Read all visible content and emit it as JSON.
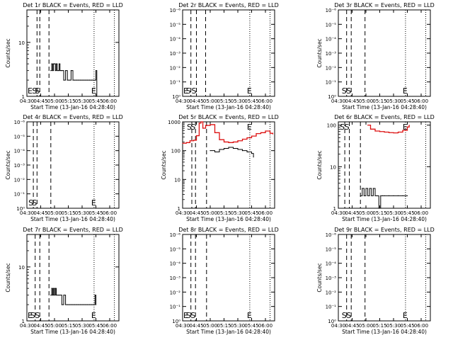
{
  "chart_data": [
    {
      "id": "1r",
      "type": "line",
      "title": "Det 1r BLACK = Events, RED = LLD",
      "xlabel": "Start Time (13-Jan-16 04:28:40)",
      "ylabel": "Counts/sec",
      "xticks": [
        "04:30",
        "04:45",
        "05:00",
        "05:15",
        "05:30",
        "05:45",
        "06:00"
      ],
      "yticks": [
        "1",
        "10"
      ],
      "yscale": "log",
      "ylim": [
        1,
        40
      ],
      "markers": [
        {
          "t": "04:30",
          "label": "E"
        },
        {
          "t": "04:41",
          "label": "S"
        },
        {
          "t": "04:44",
          "label": "S"
        },
        {
          "t": "04:54",
          "label": ""
        },
        {
          "t": "05:43",
          "label": "E"
        },
        {
          "t": "06:05",
          "label": ""
        }
      ],
      "events": {
        "x": [
          "04:56",
          "04:57",
          "04:58",
          "04:59",
          "05:00",
          "05:01",
          "05:02",
          "05:03",
          "05:04",
          "05:05",
          "05:06",
          "05:07",
          "05:08",
          "05:10",
          "05:12",
          "05:14",
          "05:16",
          "05:18",
          "05:20",
          "05:22",
          "05:24",
          "05:26",
          "05:28",
          "05:30",
          "05:32",
          "05:34",
          "05:36",
          "05:38",
          "05:40",
          "05:42",
          "05:44",
          "05:45",
          "05:46"
        ],
        "y": [
          3,
          4,
          3,
          4,
          4,
          3,
          4,
          3,
          3,
          4,
          3,
          3,
          3,
          2,
          3,
          2,
          2,
          3,
          2,
          2,
          2,
          2,
          2,
          2,
          2,
          2,
          2,
          2,
          2,
          2,
          2,
          3,
          1
        ]
      },
      "lld": null
    },
    {
      "id": "2r",
      "type": "line",
      "title": "Det 2r BLACK = Events, RED = LLD",
      "xlabel": "Start Time (13-Jan-16 04:28:40)",
      "ylabel": "",
      "xticks": [
        "04:30",
        "04:45",
        "05:00",
        "05:15",
        "05:30",
        "05:45",
        "06:00"
      ],
      "yticks": [
        "10⁰",
        "10⁻¹",
        "10⁻²",
        "10⁻³",
        "10⁻⁴",
        "10⁻⁵",
        "10⁻⁶"
      ],
      "yscale": "log",
      "markers": [
        {
          "t": "04:30",
          "label": "E"
        },
        {
          "t": "04:39",
          "label": "S"
        },
        {
          "t": "04:45",
          "label": "S"
        },
        {
          "t": "04:55",
          "label": ""
        },
        {
          "t": "05:43",
          "label": "E"
        },
        {
          "t": "06:05",
          "label": ""
        }
      ],
      "events": null,
      "lld": null
    },
    {
      "id": "3r",
      "type": "line",
      "title": "Det 3r BLACK = Events, RED = LLD",
      "xlabel": "Start Time (13-Jan-16 04:28:40)",
      "ylabel": "Counts/sec",
      "xticks": [
        "04:30",
        "04:45",
        "05:00",
        "05:15",
        "05:30",
        "05:45",
        "06:00"
      ],
      "yticks": [
        "10⁰",
        "10⁻¹",
        "10⁻²",
        "10⁻³",
        "10⁻⁴",
        "10⁻⁵",
        "10⁻⁶"
      ],
      "yscale": "log",
      "markers": [
        {
          "t": "04:39",
          "label": "S"
        },
        {
          "t": "04:44",
          "label": "S"
        },
        {
          "t": "04:59",
          "label": ""
        },
        {
          "t": "05:43",
          "label": "E"
        },
        {
          "t": "06:05",
          "label": ""
        }
      ],
      "events": null,
      "lld": null
    },
    {
      "id": "4r",
      "type": "line",
      "title": "Det 4r BLACK = Events, RED = LLD",
      "xlabel": "Start Time (13-Jan-16 04:28:40)",
      "ylabel": "Counts/sec",
      "xticks": [
        "04:30",
        "04:45",
        "05:00",
        "05:15",
        "05:30",
        "05:45",
        "06:00"
      ],
      "yticks": [
        "10⁰",
        "10⁻¹",
        "10⁻²",
        "10⁻³",
        "10⁻⁴",
        "10⁻⁵",
        "10⁻⁶"
      ],
      "yscale": "log",
      "markers": [
        {
          "t": "04:37",
          "label": "S"
        },
        {
          "t": "04:41",
          "label": "S"
        },
        {
          "t": "04:56",
          "label": ""
        },
        {
          "t": "05:43",
          "label": "E"
        },
        {
          "t": "06:05",
          "label": ""
        }
      ],
      "events": null,
      "lld": null
    },
    {
      "id": "5r",
      "type": "line",
      "title": "Det 5r BLACK = Events, RED = LLD",
      "xlabel": "Start Time (13-Jan-16 04:28:40)",
      "ylabel": "Counts/sec",
      "xticks": [
        "04:30",
        "04:45",
        "05:00",
        "05:15",
        "05:30",
        "05:45",
        "06:00"
      ],
      "yticks": [
        "1",
        "10",
        "100",
        "1000"
      ],
      "yscale": "log",
      "ylim": [
        1,
        1000
      ],
      "markers": [
        {
          "t": "04:40",
          "label": "S"
        },
        {
          "t": "04:44",
          "label": "S"
        },
        {
          "t": "04:56",
          "label": ""
        },
        {
          "t": "05:43",
          "label": "E"
        },
        {
          "t": "06:05",
          "label": ""
        }
      ],
      "events": {
        "x": [
          "05:00",
          "05:05",
          "05:10",
          "05:15",
          "05:20",
          "05:25",
          "05:30",
          "05:35",
          "05:40",
          "05:45",
          "05:47"
        ],
        "y": [
          100,
          90,
          110,
          120,
          130,
          120,
          110,
          100,
          90,
          80,
          60
        ]
      },
      "lld": {
        "x": [
          "04:30",
          "04:34",
          "04:38",
          "04:42",
          "04:45",
          "04:48",
          "04:50",
          "04:52",
          "04:55",
          "05:00",
          "05:05",
          "05:10",
          "05:15",
          "05:20",
          "05:25",
          "05:30",
          "05:35",
          "05:40",
          "05:45",
          "05:50",
          "05:55",
          "06:00",
          "06:05",
          "06:08"
        ],
        "y": [
          180,
          190,
          220,
          230,
          330,
          900,
          1000,
          600,
          750,
          800,
          420,
          240,
          200,
          190,
          200,
          220,
          250,
          280,
          320,
          390,
          420,
          480,
          400,
          380
        ]
      }
    },
    {
      "id": "6r",
      "type": "line",
      "title": "Det 6r BLACK = Events, RED = LLD",
      "xlabel": "Start Time (13-Jan-16 04:28:40)",
      "ylabel": "Counts/sec",
      "xticks": [
        "04:30",
        "04:45",
        "05:00",
        "05:15",
        "05:30",
        "05:45",
        "06:00"
      ],
      "yticks": [
        "1",
        "10",
        "100"
      ],
      "yscale": "log",
      "ylim": [
        1,
        120
      ],
      "markers": [
        {
          "t": "04:37",
          "label": "S"
        },
        {
          "t": "04:42",
          "label": "S"
        },
        {
          "t": "04:54",
          "label": ""
        },
        {
          "t": "05:43",
          "label": "E"
        },
        {
          "t": "06:05",
          "label": ""
        }
      ],
      "events": {
        "x": [
          "04:54",
          "04:56",
          "04:58",
          "05:00",
          "05:02",
          "05:04",
          "05:06",
          "05:08",
          "05:10",
          "05:12",
          "05:14",
          "05:16",
          "05:18",
          "05:20",
          "05:25",
          "05:30",
          "05:35",
          "05:40",
          "05:45"
        ],
        "y": [
          2,
          3,
          2,
          3,
          2,
          3,
          2,
          3,
          2,
          2,
          1,
          2,
          2,
          2,
          2,
          2,
          2,
          2,
          2
        ]
      },
      "lld": {
        "x": [
          "05:02",
          "05:05",
          "05:10",
          "05:15",
          "05:20",
          "05:25",
          "05:30",
          "05:35",
          "05:40",
          "05:45",
          "05:47"
        ],
        "y": [
          100,
          80,
          72,
          70,
          68,
          66,
          65,
          68,
          75,
          90,
          100
        ]
      }
    },
    {
      "id": "7r",
      "type": "line",
      "title": "Det 7r BLACK = Events, RED = LLD",
      "xlabel": "Start Time (13-Jan-16 04:28:40)",
      "ylabel": "Counts/sec",
      "xticks": [
        "04:30",
        "04:45",
        "05:00",
        "05:15",
        "05:30",
        "05:45",
        "06:00"
      ],
      "yticks": [
        "1",
        "10"
      ],
      "yscale": "log",
      "ylim": [
        1,
        40
      ],
      "markers": [
        {
          "t": "04:30",
          "label": "E"
        },
        {
          "t": "04:39",
          "label": "S"
        },
        {
          "t": "04:44",
          "label": "S"
        },
        {
          "t": "04:54",
          "label": ""
        },
        {
          "t": "05:43",
          "label": "E"
        },
        {
          "t": "06:05",
          "label": ""
        }
      ],
      "events": {
        "x": [
          "04:56",
          "04:57",
          "04:58",
          "04:59",
          "05:00",
          "05:01",
          "05:02",
          "05:04",
          "05:06",
          "05:08",
          "05:10",
          "05:12",
          "05:14",
          "05:16",
          "05:18",
          "05:20",
          "05:22",
          "05:24",
          "05:26",
          "05:28",
          "05:30",
          "05:32",
          "05:34",
          "05:36",
          "05:38",
          "05:40",
          "05:42",
          "05:44",
          "05:45"
        ],
        "y": [
          3,
          4,
          3,
          4,
          3,
          4,
          3,
          3,
          3,
          2,
          3,
          2,
          2,
          2,
          2,
          2,
          2,
          2,
          2,
          2,
          2,
          2,
          2,
          2,
          2,
          2,
          2,
          3,
          2
        ]
      },
      "lld": null
    },
    {
      "id": "8r",
      "type": "line",
      "title": "Det 8r BLACK = Events, RED = LLD",
      "xlabel": "Start Time (13-Jan-16 04:28:40)",
      "ylabel": "",
      "xticks": [
        "04:30",
        "04:45",
        "05:00",
        "05:15",
        "05:30",
        "05:45",
        "06:00"
      ],
      "yticks": [
        "10⁰",
        "10⁻¹",
        "10⁻²",
        "10⁻³",
        "10⁻⁴",
        "10⁻⁵",
        "10⁻⁶"
      ],
      "yscale": "log",
      "markers": [
        {
          "t": "04:30",
          "label": "E"
        },
        {
          "t": "04:39",
          "label": "S"
        },
        {
          "t": "04:44",
          "label": "S"
        },
        {
          "t": "04:56",
          "label": ""
        },
        {
          "t": "05:43",
          "label": "E"
        },
        {
          "t": "06:05",
          "label": ""
        }
      ],
      "events": null,
      "lld": null
    },
    {
      "id": "9r",
      "type": "line",
      "title": "Det 9r BLACK = Events, RED = LLD",
      "xlabel": "Start Time (13-Jan-16 04:28:40)",
      "ylabel": "Counts/sec",
      "xticks": [
        "04:30",
        "04:45",
        "05:00",
        "05:15",
        "05:30",
        "05:45",
        "06:00"
      ],
      "yticks": [
        "10⁰",
        "10⁻¹",
        "10⁻²",
        "10⁻³",
        "10⁻⁴",
        "10⁻⁵",
        "10⁻⁶"
      ],
      "yscale": "log",
      "markers": [
        {
          "t": "04:39",
          "label": "S"
        },
        {
          "t": "04:44",
          "label": "S"
        },
        {
          "t": "04:59",
          "label": ""
        },
        {
          "t": "05:43",
          "label": "E"
        },
        {
          "t": "06:05",
          "label": ""
        }
      ],
      "events": null,
      "lld": null
    }
  ],
  "colors": {
    "events": "#000000",
    "lld": "#dd1111",
    "background": "#ffffff"
  }
}
